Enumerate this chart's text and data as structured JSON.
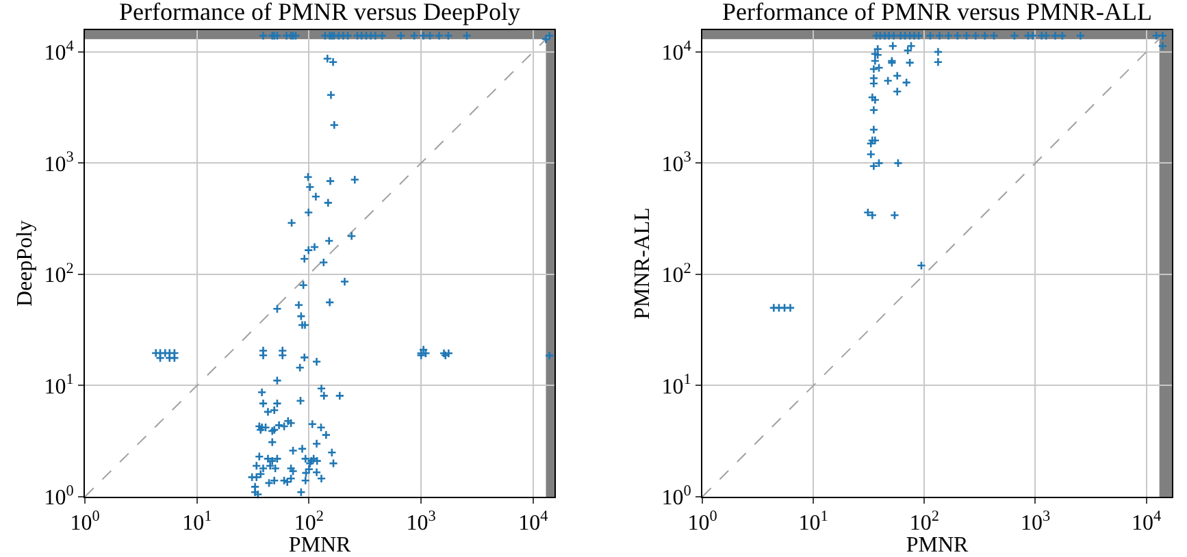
{
  "chart_data": [
    {
      "type": "scatter",
      "title": "Performance of PMNR versus DeepPoly",
      "xlabel": "PMNR",
      "ylabel": "DeepPoly",
      "log": "xy",
      "grid": true,
      "xlim": [
        1,
        15500
      ],
      "ylim": [
        1,
        15700
      ],
      "xticks": [
        {
          "value": 1,
          "label": "10$^{0}$"
        },
        {
          "value": 10,
          "label": "10$^{1}$"
        },
        {
          "value": 100,
          "label": "10$^{2}$"
        },
        {
          "value": 1000,
          "label": "10$^{3}$"
        },
        {
          "value": 10000,
          "label": "10$^{4}$"
        }
      ],
      "yticks": [
        {
          "value": 1,
          "label": "10$^{0}$"
        },
        {
          "value": 10,
          "label": "10$^{1}$"
        },
        {
          "value": 100,
          "label": "10$^{2}$"
        },
        {
          "value": 1000,
          "label": "10$^{3}$"
        },
        {
          "value": 10000,
          "label": "10$^{4}$"
        }
      ],
      "bands": [
        {
          "axis": "y",
          "from": 13000,
          "to": 15700,
          "color": "#808080"
        },
        {
          "axis": "x",
          "from": 13000,
          "to": 15500,
          "color": "#808080"
        }
      ],
      "series": [
        {
          "marker": "cross",
          "color": "#1f77b4",
          "x": [
            39,
            47,
            49,
            52,
            63,
            69,
            72,
            76,
            139,
            153,
            160,
            167,
            184,
            202,
            222,
            270,
            294,
            324,
            356,
            391,
            450,
            660,
            870,
            1050,
            1200,
            1450,
            1750,
            2560,
            13000,
            14000,
            146,
            164,
            157,
            168,
            98,
            102,
            155,
            256,
            115,
            148,
            99,
            70,
            151,
            240,
            99,
            112,
            91,
            135,
            89,
            208,
            153,
            81,
            52,
            85,
            87,
            92,
            4.3,
            4.7,
            5.2,
            5.7,
            6.3,
            4.7,
            5.7,
            6.3,
            39,
            39,
            58,
            58,
            91,
            117,
            83,
            52,
            1000,
            1050,
            1100,
            1000,
            1600,
            1760,
            1650,
            14000,
            38,
            129,
            136,
            188,
            39,
            52,
            84,
            43,
            49,
            36,
            38,
            41,
            37,
            47,
            49,
            54,
            60,
            65,
            69,
            107,
            128,
            142,
            47,
            87,
            72,
            117,
            160,
            165,
            36,
            43,
            47,
            52,
            93,
            105,
            110,
            118,
            102,
            34,
            39,
            45,
            50,
            69,
            72,
            31,
            34,
            37,
            44,
            49,
            60,
            64,
            69,
            94,
            100,
            117,
            129,
            93,
            33,
            33,
            35,
            85
          ],
          "values": [
            14000,
            14000,
            14000,
            14000,
            14000,
            14000,
            14000,
            14000,
            14000,
            14000,
            14000,
            14000,
            14000,
            14000,
            14000,
            14000,
            14000,
            14000,
            14000,
            14000,
            14000,
            14000,
            14000,
            14000,
            14000,
            14000,
            14000,
            14000,
            13000,
            14000,
            8700,
            8100,
            4100,
            2200,
            750,
            610,
            690,
            710,
            500,
            440,
            360,
            290,
            200,
            221,
            165,
            176,
            138,
            128,
            80,
            86,
            56,
            53,
            49,
            42,
            35,
            35,
            19.6,
            19.6,
            19.6,
            19.6,
            19.6,
            17.7,
            17.7,
            17.7,
            20.6,
            18.7,
            20.6,
            18.7,
            17.9,
            16.4,
            14.5,
            11.1,
            19.5,
            21,
            19.5,
            18.7,
            19.5,
            19.5,
            18.7,
            18.6,
            8.7,
            9.4,
            8.1,
            8.1,
            6.9,
            6.9,
            7.3,
            5.8,
            6,
            4.3,
            4.2,
            4.2,
            4,
            3.9,
            4,
            4.4,
            4.3,
            4.8,
            4.6,
            4.5,
            4.2,
            3.6,
            3.1,
            2.7,
            2.6,
            3,
            2.5,
            2,
            2.3,
            2.2,
            2.1,
            2.2,
            2.2,
            2.1,
            2.2,
            2.1,
            2,
            1.9,
            1.8,
            1.9,
            1.8,
            1.8,
            1.7,
            1.5,
            1.5,
            1.6,
            1.33,
            1.4,
            1.4,
            1.36,
            1.46,
            1.64,
            1.77,
            1.66,
            1.46,
            1.4,
            1.23,
            1.1,
            1.05,
            1.1
          ]
        },
        {
          "type": "line",
          "color": "#a0a0a0",
          "line_style": "dashed",
          "x": [
            1,
            14000
          ],
          "values": [
            1,
            14000
          ]
        }
      ]
    },
    {
      "type": "scatter",
      "title": "Performance of PMNR versus PMNR-ALL",
      "xlabel": "PMNR",
      "ylabel": "PMNR-ALL",
      "log": "xy",
      "grid": true,
      "xlim": [
        1,
        17000
      ],
      "ylim": [
        1,
        15700
      ],
      "xticks": [
        {
          "value": 1,
          "label": "10$^{0}$"
        },
        {
          "value": 10,
          "label": "10$^{1}$"
        },
        {
          "value": 100,
          "label": "10$^{2}$"
        },
        {
          "value": 1000,
          "label": "10$^{3}$"
        },
        {
          "value": 10000,
          "label": "10$^{4}$"
        }
      ],
      "yticks": [
        {
          "value": 1,
          "label": "10$^{0}$"
        },
        {
          "value": 10,
          "label": "10$^{1}$"
        },
        {
          "value": 100,
          "label": "10$^{2}$"
        },
        {
          "value": 1000,
          "label": "10$^{3}$"
        },
        {
          "value": 10000,
          "label": "10$^{4}$"
        }
      ],
      "bands": [
        {
          "axis": "y",
          "from": 13000,
          "to": 15700,
          "color": "#808080"
        },
        {
          "axis": "x",
          "from": 13100,
          "to": 17000,
          "color": "#808080"
        }
      ],
      "series": [
        {
          "marker": "cross",
          "color": "#1f77b4",
          "x": [
            37,
            40,
            44,
            48,
            53,
            61,
            67,
            74,
            81,
            89,
            113,
            137,
            165,
            199,
            240,
            290,
            351,
            424,
            648,
            860,
            945,
            1140,
            1250,
            1510,
            1750,
            2550,
            12300,
            14000,
            14000,
            38,
            36,
            38,
            52,
            76,
            71,
            133,
            133,
            36,
            51,
            51,
            74,
            35,
            39,
            57,
            35,
            35,
            47,
            69,
            57,
            34,
            36,
            35,
            35,
            34,
            33,
            33,
            36,
            35,
            39,
            58,
            31,
            34,
            54,
            94,
            4.4,
            4.9,
            5.5,
            6.2
          ],
          "values": [
            14000,
            14000,
            14000,
            14000,
            14000,
            14000,
            14000,
            14000,
            14000,
            14000,
            14000,
            14000,
            14000,
            14000,
            14000,
            14000,
            14000,
            14000,
            14000,
            14000,
            14000,
            14000,
            14000,
            14000,
            14000,
            14000,
            14000,
            14000,
            11300,
            10600,
            9600,
            9400,
            11300,
            11300,
            10300,
            10000,
            8100,
            8300,
            8300,
            8000,
            8000,
            7000,
            7200,
            6100,
            5800,
            5200,
            5500,
            5300,
            4400,
            3900,
            3700,
            3000,
            2000,
            1600,
            1500,
            1200,
            1600,
            940,
            1000,
            1000,
            360,
            340,
            340,
            120,
            50,
            50,
            50,
            50
          ]
        },
        {
          "type": "line",
          "color": "#a0a0a0",
          "line_style": "dashed",
          "x": [
            1,
            14000
          ],
          "values": [
            1,
            14000
          ]
        }
      ]
    }
  ]
}
